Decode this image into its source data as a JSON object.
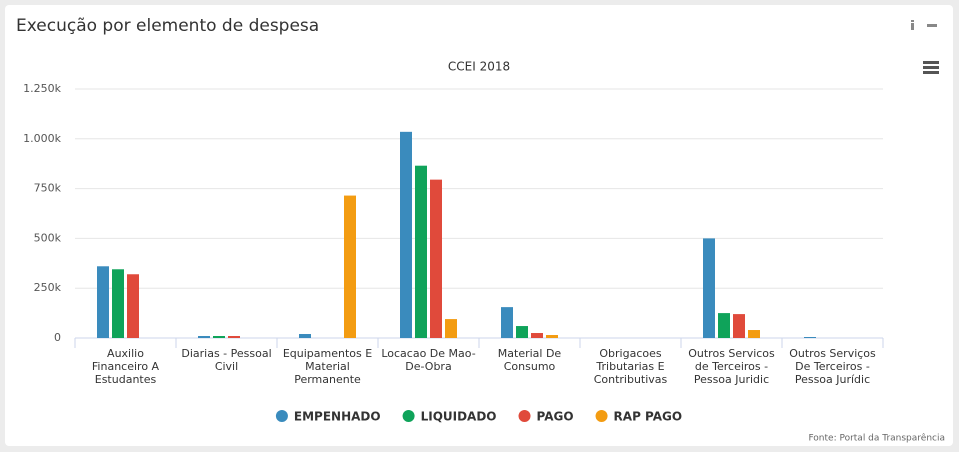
{
  "header": {
    "title": "Execução por elemento de despesa"
  },
  "chart_data": {
    "type": "bar",
    "title": "CCEI 2018",
    "categories": [
      "Auxilio Financeiro A Estudantes",
      "Diarias - Pessoal Civil",
      "Equipamentos E Material Permanente",
      "Locacao De Mao-De-Obra",
      "Material De Consumo",
      "Obrigacoes Tributarias E Contributivas",
      "Outros Servicos de Terceiros - Pessoa Juridic",
      "Outros Serviços De Terceiros - Pessoa Jurídic"
    ],
    "series": [
      {
        "name": "EMPENHADO",
        "color": "#3a8bbd",
        "values": [
          360000,
          10000,
          20000,
          1035000,
          155000,
          0,
          500000,
          5000
        ]
      },
      {
        "name": "LIQUIDADO",
        "color": "#0fa35a",
        "values": [
          345000,
          10000,
          0,
          865000,
          60000,
          0,
          125000,
          0
        ]
      },
      {
        "name": "PAGO",
        "color": "#e04a3b",
        "values": [
          320000,
          10000,
          0,
          795000,
          25000,
          0,
          120000,
          0
        ]
      },
      {
        "name": "RAP PAGO",
        "color": "#f39c12",
        "values": [
          0,
          0,
          715000,
          95000,
          15000,
          0,
          40000,
          0
        ]
      }
    ],
    "ylim": [
      0,
      1250000
    ],
    "yticks": [
      0,
      {
        "value": 250000,
        "label": "250k"
      },
      {
        "value": 500000,
        "label": "500k"
      },
      {
        "value": 750000,
        "label": "750k"
      },
      {
        "value": 1000000,
        "label": "1.000k"
      },
      {
        "value": 1250000,
        "label": "1.250k"
      }
    ],
    "grid": true,
    "legend": "bottom"
  },
  "footer": {
    "source": "Fonte: Portal da Transparência"
  }
}
